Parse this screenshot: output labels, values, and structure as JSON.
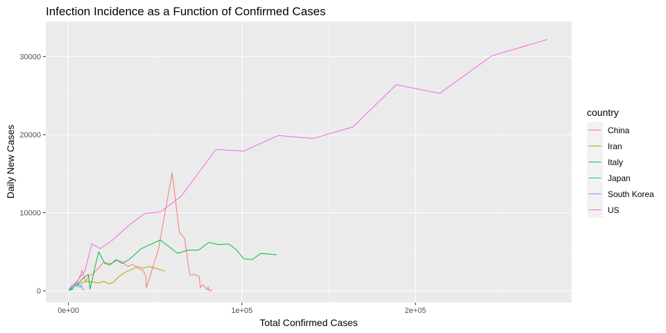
{
  "chart_data": {
    "type": "line",
    "title": "Infection Incidence as a Function of Confirmed Cases",
    "xlabel": "Total Confirmed Cases",
    "ylabel": "Daily New Cases",
    "xlim": [
      -13000,
      290000
    ],
    "ylim": [
      -1500,
      34500
    ],
    "x_ticks": [
      {
        "value": 0,
        "label": "0e+00"
      },
      {
        "value": 100000,
        "label": "1e+05"
      },
      {
        "value": 200000,
        "label": "2e+05"
      }
    ],
    "y_ticks": [
      {
        "value": 0,
        "label": "0"
      },
      {
        "value": 10000,
        "label": "10000"
      },
      {
        "value": 20000,
        "label": "20000"
      },
      {
        "value": 30000,
        "label": "30000"
      }
    ],
    "grid": true,
    "legend": {
      "title": "country",
      "placement": "right"
    },
    "series": [
      {
        "name": "China",
        "color": "#F8766D",
        "points": [
          [
            0,
            0
          ],
          [
            2000,
            500
          ],
          [
            4500,
            900
          ],
          [
            6000,
            1500
          ],
          [
            8000,
            2600
          ],
          [
            9800,
            1200
          ],
          [
            12000,
            1900
          ],
          [
            14500,
            2200
          ],
          [
            17000,
            2800
          ],
          [
            20000,
            3600
          ],
          [
            24500,
            3500
          ],
          [
            28000,
            3900
          ],
          [
            31000,
            3700
          ],
          [
            34500,
            3100
          ],
          [
            37000,
            3400
          ],
          [
            40000,
            2900
          ],
          [
            43000,
            2600
          ],
          [
            44600,
            1900
          ],
          [
            45000,
            400
          ],
          [
            52000,
            5400
          ],
          [
            59800,
            15100
          ],
          [
            64000,
            7500
          ],
          [
            67000,
            6700
          ],
          [
            70000,
            2000
          ],
          [
            73000,
            2100
          ],
          [
            75500,
            1800
          ],
          [
            76000,
            400
          ],
          [
            77500,
            800
          ],
          [
            78500,
            500
          ],
          [
            80000,
            100
          ],
          [
            80500,
            500
          ],
          [
            81000,
            0
          ],
          [
            82500,
            50
          ],
          [
            82000,
            150
          ],
          [
            82800,
            80
          ]
        ]
      },
      {
        "name": "Iran",
        "color": "#B79F00",
        "points": [
          [
            0,
            0
          ],
          [
            2000,
            300
          ],
          [
            5000,
            800
          ],
          [
            8500,
            1100
          ],
          [
            11500,
            1200
          ],
          [
            14500,
            1100
          ],
          [
            17500,
            1000
          ],
          [
            20500,
            1200
          ],
          [
            23000,
            900
          ],
          [
            25500,
            1000
          ],
          [
            29000,
            1800
          ],
          [
            33000,
            2400
          ],
          [
            36000,
            2700
          ],
          [
            40000,
            3100
          ],
          [
            43000,
            2900
          ],
          [
            46000,
            3100
          ],
          [
            50000,
            2900
          ],
          [
            53000,
            2700
          ],
          [
            55500,
            2500
          ]
        ]
      },
      {
        "name": "Italy",
        "color": "#00BA38",
        "points": [
          [
            0,
            0
          ],
          [
            2000,
            300
          ],
          [
            5000,
            800
          ],
          [
            8000,
            1500
          ],
          [
            11500,
            2100
          ],
          [
            12500,
            200
          ],
          [
            15000,
            2700
          ],
          [
            17500,
            5000
          ],
          [
            21000,
            3500
          ],
          [
            24000,
            3300
          ],
          [
            27500,
            4000
          ],
          [
            31000,
            3500
          ],
          [
            35000,
            4000
          ],
          [
            42000,
            5400
          ],
          [
            53000,
            6500
          ],
          [
            63000,
            4800
          ],
          [
            69000,
            5200
          ],
          [
            75000,
            5200
          ],
          [
            81000,
            6200
          ],
          [
            87000,
            5900
          ],
          [
            92500,
            6000
          ],
          [
            97000,
            5200
          ],
          [
            101000,
            4100
          ],
          [
            106000,
            4000
          ],
          [
            111000,
            4800
          ],
          [
            116000,
            4700
          ],
          [
            120000,
            4600
          ]
        ]
      },
      {
        "name": "Japan",
        "color": "#00BFC4",
        "points": [
          [
            0,
            0
          ],
          [
            300,
            50
          ],
          [
            600,
            120
          ],
          [
            900,
            60
          ],
          [
            1200,
            150
          ],
          [
            1600,
            100
          ],
          [
            2000,
            200
          ],
          [
            2500,
            150
          ],
          [
            3000,
            250
          ]
        ]
      },
      {
        "name": "South Korea",
        "color": "#619CFF",
        "points": [
          [
            0,
            0
          ],
          [
            800,
            300
          ],
          [
            1500,
            600
          ],
          [
            2500,
            700
          ],
          [
            3500,
            800
          ],
          [
            4500,
            1000
          ],
          [
            5200,
            500
          ],
          [
            6000,
            800
          ],
          [
            6800,
            400
          ],
          [
            7500,
            800
          ],
          [
            8000,
            300
          ],
          [
            8500,
            150
          ],
          [
            9000,
            100
          ],
          [
            9500,
            80
          ]
        ]
      },
      {
        "name": "US",
        "color": "#F564E3",
        "points": [
          [
            0,
            0
          ],
          [
            1500,
            400
          ],
          [
            3000,
            800
          ],
          [
            5000,
            1200
          ],
          [
            7000,
            1800
          ],
          [
            9500,
            2500
          ],
          [
            13500,
            6000
          ],
          [
            18500,
            5400
          ],
          [
            25500,
            6500
          ],
          [
            35000,
            8400
          ],
          [
            44000,
            9900
          ],
          [
            53000,
            10100
          ],
          [
            65000,
            12100
          ],
          [
            85000,
            18100
          ],
          [
            101000,
            17900
          ],
          [
            121000,
            19900
          ],
          [
            141000,
            19500
          ],
          [
            164000,
            21000
          ],
          [
            189000,
            26400
          ],
          [
            214000,
            25300
          ],
          [
            244000,
            30100
          ],
          [
            276000,
            32200
          ]
        ]
      }
    ]
  }
}
